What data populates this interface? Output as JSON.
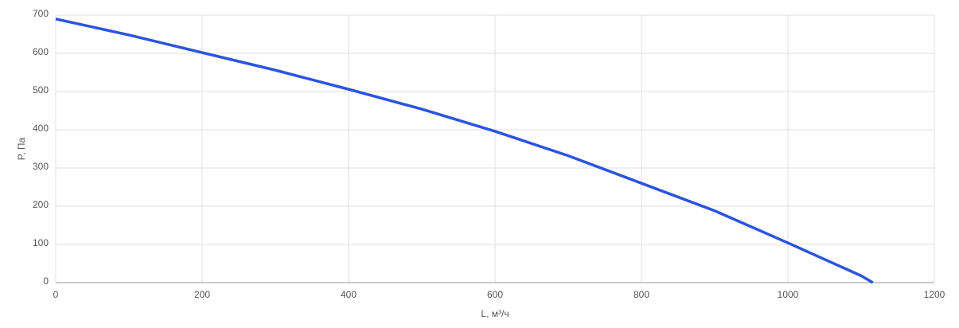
{
  "chart_data": {
    "type": "line",
    "x_label": "L, м³/ч",
    "y_label": "P, Па",
    "x": [
      0,
      100,
      200,
      300,
      400,
      500,
      600,
      700,
      800,
      900,
      1000,
      1100,
      1116
    ],
    "series": [
      {
        "name": "P",
        "color": "#2b54df",
        "values": [
          690,
          648,
          602,
          556,
          506,
          454,
          396,
          332,
          260,
          188,
          104,
          18,
          0
        ]
      }
    ],
    "xlim": [
      0,
      1200
    ],
    "xticks": [
      0,
      200,
      400,
      600,
      800,
      1000,
      1200
    ],
    "ylim": [
      0,
      700
    ],
    "yticks": [
      0,
      100,
      200,
      300,
      400,
      500,
      600,
      700
    ],
    "grid": true
  }
}
